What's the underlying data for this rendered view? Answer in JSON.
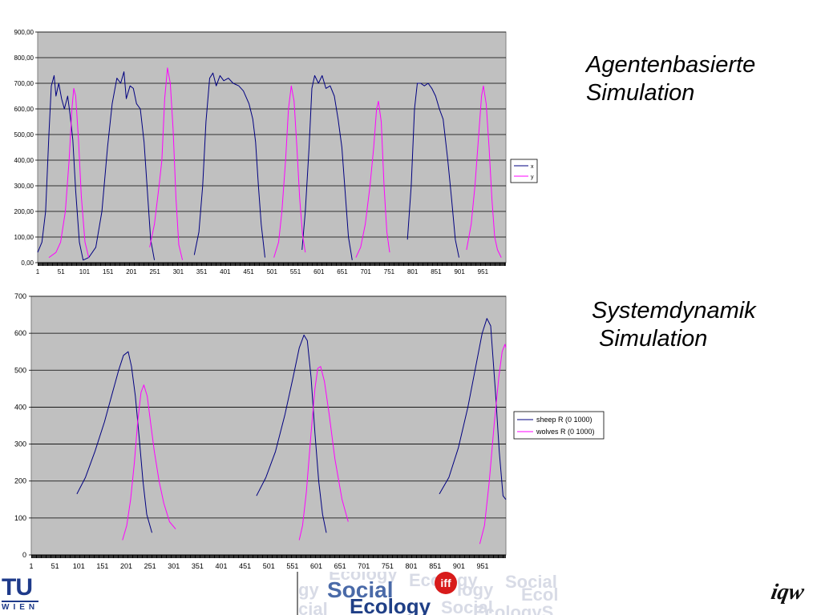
{
  "titles": {
    "chart1_line1": "Agentenbasierte",
    "chart1_line2": "Simulation",
    "chart2_line1": "Systemdynamik",
    "chart2_line2": "Simulation"
  },
  "logos": {
    "tu_main": "TU",
    "tu_sub": "WIEN",
    "social_word": "Social",
    "ecology_word": "Ecology",
    "iff_badge": "iff",
    "iqw": "iqw"
  },
  "colors": {
    "plot_bg": "#c0c0c0",
    "grid": "#000000",
    "series_blue": "#000080",
    "series_magenta": "#ff00ff"
  },
  "chart_data": [
    {
      "type": "line",
      "title": "",
      "xlabel": "",
      "ylabel": "",
      "xlim": [
        1,
        1000
      ],
      "ylim": [
        0,
        900
      ],
      "grid": true,
      "legend_position": "right",
      "x_tick_labels": [
        "1",
        "51",
        "101",
        "151",
        "201",
        "251",
        "301",
        "351",
        "401",
        "451",
        "501",
        "551",
        "601",
        "651",
        "701",
        "751",
        "801",
        "851",
        "901",
        "951"
      ],
      "y_tick_labels": [
        "0,00",
        "100,00",
        "200,00",
        "300,00",
        "400,00",
        "500,00",
        "600,00",
        "700,00",
        "800,00",
        "900,00"
      ],
      "series": [
        {
          "name": "x",
          "color": "#000080",
          "points": [
            [
              1,
              40
            ],
            [
              10,
              80
            ],
            [
              18,
              200
            ],
            [
              25,
              500
            ],
            [
              30,
              690
            ],
            [
              36,
              730
            ],
            [
              40,
              650
            ],
            [
              46,
              700
            ],
            [
              52,
              640
            ],
            [
              58,
              600
            ],
            [
              65,
              650
            ],
            [
              70,
              580
            ],
            [
              76,
              480
            ],
            [
              82,
              280
            ],
            [
              90,
              80
            ],
            [
              98,
              10
            ],
            [
              110,
              20
            ],
            [
              125,
              60
            ],
            [
              138,
              200
            ],
            [
              150,
              450
            ],
            [
              160,
              620
            ],
            [
              170,
              720
            ],
            [
              178,
              700
            ],
            [
              185,
              745
            ],
            [
              190,
              640
            ],
            [
              198,
              690
            ],
            [
              205,
              680
            ],
            [
              212,
              620
            ],
            [
              220,
              600
            ],
            [
              228,
              470
            ],
            [
              235,
              280
            ],
            [
              242,
              90
            ],
            [
              250,
              10
            ],
            [
              335,
              30
            ],
            [
              345,
              120
            ],
            [
              353,
              300
            ],
            [
              360,
              550
            ],
            [
              368,
              720
            ],
            [
              375,
              740
            ],
            [
              382,
              690
            ],
            [
              390,
              730
            ],
            [
              398,
              710
            ],
            [
              408,
              720
            ],
            [
              418,
              700
            ],
            [
              430,
              690
            ],
            [
              440,
              670
            ],
            [
              452,
              620
            ],
            [
              460,
              560
            ],
            [
              466,
              470
            ],
            [
              472,
              300
            ],
            [
              478,
              150
            ],
            [
              486,
              20
            ],
            [
              565,
              50
            ],
            [
              572,
              200
            ],
            [
              580,
              450
            ],
            [
              586,
              680
            ],
            [
              592,
              730
            ],
            [
              600,
              700
            ],
            [
              608,
              730
            ],
            [
              616,
              680
            ],
            [
              625,
              690
            ],
            [
              634,
              650
            ],
            [
              642,
              560
            ],
            [
              650,
              450
            ],
            [
              658,
              250
            ],
            [
              664,
              100
            ],
            [
              672,
              10
            ],
            [
              790,
              90
            ],
            [
              798,
              300
            ],
            [
              805,
              600
            ],
            [
              811,
              700
            ],
            [
              818,
              700
            ],
            [
              826,
              690
            ],
            [
              834,
              700
            ],
            [
              842,
              680
            ],
            [
              850,
              650
            ],
            [
              858,
              600
            ],
            [
              866,
              560
            ],
            [
              876,
              400
            ],
            [
              884,
              250
            ],
            [
              892,
              90
            ],
            [
              900,
              20
            ]
          ]
        },
        {
          "name": "y",
          "color": "#ff00ff",
          "points": [
            [
              25,
              20
            ],
            [
              40,
              40
            ],
            [
              50,
              80
            ],
            [
              60,
              200
            ],
            [
              68,
              400
            ],
            [
              74,
              600
            ],
            [
              78,
              680
            ],
            [
              82,
              650
            ],
            [
              88,
              480
            ],
            [
              94,
              260
            ],
            [
              102,
              80
            ],
            [
              110,
              20
            ],
            [
              240,
              60
            ],
            [
              250,
              150
            ],
            [
              260,
              300
            ],
            [
              266,
              400
            ],
            [
              272,
              640
            ],
            [
              278,
              760
            ],
            [
              284,
              700
            ],
            [
              290,
              520
            ],
            [
              296,
              250
            ],
            [
              302,
              70
            ],
            [
              310,
              10
            ],
            [
              505,
              20
            ],
            [
              515,
              80
            ],
            [
              522,
              200
            ],
            [
              530,
              400
            ],
            [
              536,
              600
            ],
            [
              542,
              690
            ],
            [
              548,
              630
            ],
            [
              554,
              450
            ],
            [
              560,
              250
            ],
            [
              566,
              110
            ],
            [
              572,
              40
            ],
            [
              680,
              20
            ],
            [
              690,
              60
            ],
            [
              700,
              150
            ],
            [
              710,
              300
            ],
            [
              718,
              450
            ],
            [
              724,
              600
            ],
            [
              728,
              630
            ],
            [
              734,
              550
            ],
            [
              740,
              300
            ],
            [
              746,
              120
            ],
            [
              752,
              40
            ],
            [
              916,
              50
            ],
            [
              926,
              150
            ],
            [
              934,
              300
            ],
            [
              942,
              500
            ],
            [
              948,
              650
            ],
            [
              952,
              690
            ],
            [
              958,
              620
            ],
            [
              964,
              450
            ],
            [
              970,
              250
            ],
            [
              976,
              100
            ],
            [
              982,
              50
            ],
            [
              990,
              20
            ]
          ]
        }
      ]
    },
    {
      "type": "line",
      "title": "",
      "xlabel": "",
      "ylabel": "",
      "xlim": [
        1,
        1000
      ],
      "ylim": [
        0,
        700
      ],
      "grid": true,
      "legend_position": "right",
      "x_tick_labels": [
        "1",
        "51",
        "101",
        "151",
        "201",
        "251",
        "301",
        "351",
        "401",
        "451",
        "501",
        "551",
        "601",
        "651",
        "701",
        "751",
        "801",
        "851",
        "901",
        "951"
      ],
      "y_tick_labels": [
        "0",
        "100",
        "200",
        "300",
        "400",
        "500",
        "600",
        "700"
      ],
      "series": [
        {
          "name": "sheep R (0 1000)",
          "color": "#000080",
          "points": [
            [
              97,
              165
            ],
            [
              115,
              210
            ],
            [
              135,
              280
            ],
            [
              155,
              360
            ],
            [
              170,
              430
            ],
            [
              185,
              500
            ],
            [
              195,
              540
            ],
            [
              205,
              550
            ],
            [
              212,
              510
            ],
            [
              220,
              430
            ],
            [
              228,
              320
            ],
            [
              236,
              200
            ],
            [
              244,
              110
            ],
            [
              255,
              60
            ],
            [
              475,
              160
            ],
            [
              495,
              210
            ],
            [
              515,
              280
            ],
            [
              535,
              380
            ],
            [
              552,
              480
            ],
            [
              565,
              560
            ],
            [
              575,
              595
            ],
            [
              582,
              580
            ],
            [
              590,
              480
            ],
            [
              598,
              330
            ],
            [
              606,
              200
            ],
            [
              614,
              110
            ],
            [
              622,
              60
            ],
            [
              860,
              165
            ],
            [
              880,
              210
            ],
            [
              900,
              290
            ],
            [
              920,
              400
            ],
            [
              935,
              500
            ],
            [
              950,
              600
            ],
            [
              960,
              640
            ],
            [
              968,
              620
            ],
            [
              978,
              440
            ],
            [
              986,
              280
            ],
            [
              994,
              160
            ],
            [
              1000,
              150
            ]
          ]
        },
        {
          "name": "wolves R (0 1000)",
          "color": "#ff00ff",
          "points": [
            [
              193,
              40
            ],
            [
              202,
              80
            ],
            [
              210,
              150
            ],
            [
              218,
              250
            ],
            [
              225,
              360
            ],
            [
              232,
              440
            ],
            [
              238,
              460
            ],
            [
              245,
              430
            ],
            [
              252,
              360
            ],
            [
              260,
              280
            ],
            [
              270,
              200
            ],
            [
              280,
              140
            ],
            [
              292,
              90
            ],
            [
              305,
              70
            ],
            [
              565,
              40
            ],
            [
              572,
              80
            ],
            [
              580,
              170
            ],
            [
              590,
              330
            ],
            [
              598,
              450
            ],
            [
              604,
              505
            ],
            [
              610,
              510
            ],
            [
              618,
              470
            ],
            [
              628,
              380
            ],
            [
              640,
              260
            ],
            [
              655,
              150
            ],
            [
              668,
              90
            ],
            [
              945,
              30
            ],
            [
              955,
              80
            ],
            [
              965,
              200
            ],
            [
              975,
              350
            ],
            [
              985,
              480
            ],
            [
              992,
              550
            ],
            [
              998,
              570
            ],
            [
              1000,
              560
            ]
          ]
        }
      ]
    }
  ]
}
